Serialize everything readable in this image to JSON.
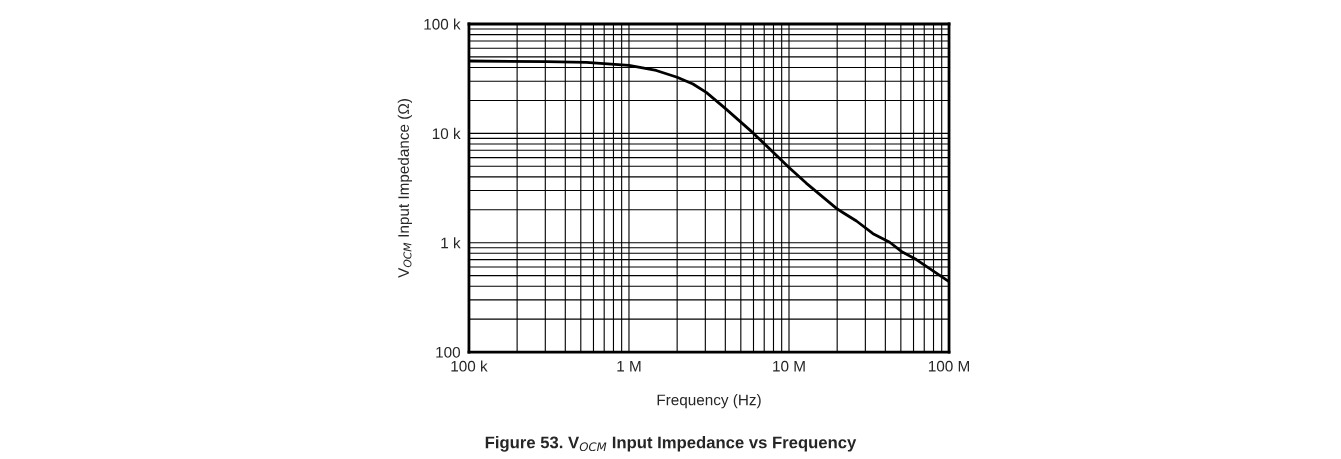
{
  "chart_data": {
    "type": "line",
    "title": "Figure 53. V$_{OCM}$ Input Impedance vs Frequency",
    "xlabel": "Frequency (Hz)",
    "ylabel": "V$_{OCM}$ Input Impedance (Ω)",
    "log": "xy",
    "grid": true,
    "marker": "none",
    "line_style": "solid",
    "xlim": [
      100000,
      100000000
    ],
    "ylim": [
      100,
      100000
    ],
    "xticks": [
      {
        "value": 100000,
        "label": "100 k"
      },
      {
        "value": 1000000,
        "label": "1 M"
      },
      {
        "value": 10000000,
        "label": "10 M"
      },
      {
        "value": 100000000,
        "label": "100 M"
      }
    ],
    "yticks": [
      100,
      {
        "value": 1000,
        "label": "1 k"
      },
      {
        "value": 10000,
        "label": "10 k"
      },
      {
        "value": 100000,
        "label": "100 k"
      }
    ],
    "series": [
      {
        "color": "#000000",
        "x": [
          100000,
          304000,
          541000,
          1000000,
          1480000,
          2000000,
          2510000,
          3040000,
          3980000,
          5960000,
          9960000,
          12800000,
          19800000,
          21800000,
          26400000,
          33500000,
          42600000,
          50400000,
          62500000,
          100000000
        ],
        "values": [
          45900,
          45200,
          44600,
          41900,
          37600,
          32600,
          28300,
          23700,
          17000,
          10100,
          4890,
          3510,
          2060,
          1880,
          1580,
          1210,
          1010,
          832,
          701,
          440
        ]
      }
    ]
  }
}
